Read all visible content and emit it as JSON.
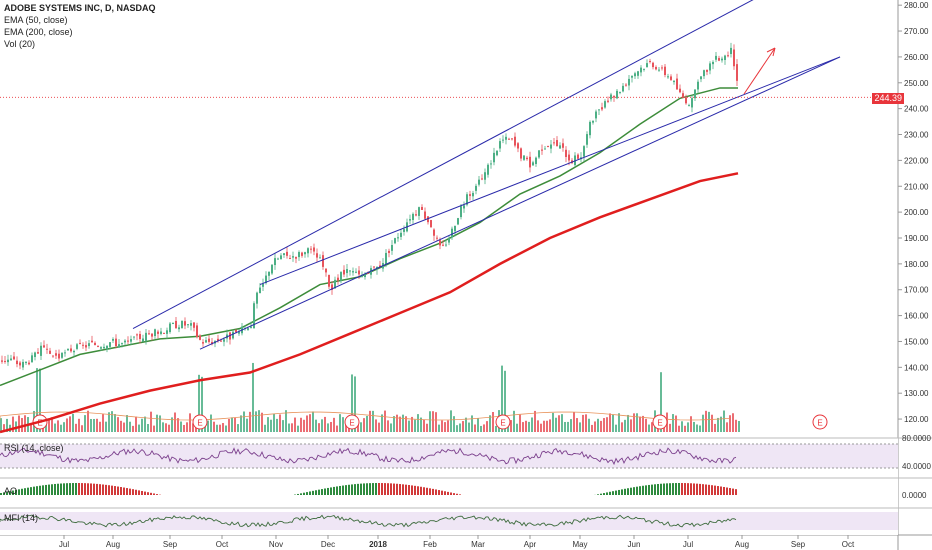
{
  "legend": {
    "title": "ADOBE SYSTEMS INC, D, NASDAQ",
    "ema50": "EMA (50, close)",
    "ema200": "EMA (200, close)",
    "vol": "Vol (20)"
  },
  "last_price": "244.39",
  "colors": {
    "up": "#4caf85",
    "down": "#e8535b",
    "ema50": "#3d8c3a",
    "ema200": "#e01e1e",
    "channel": "#2a2aaa",
    "rsi": "#7b3f8c",
    "mfi": "#3d6b3d",
    "panel_bg": "#efe6f5",
    "arrow": "#e8353b"
  },
  "panels": {
    "rsi_label": "RSI (14, close)",
    "rsi_value": "80.0000",
    "rsi_value2": "40.0000",
    "ao_label": "AO",
    "ao_value": "0.0000",
    "mfi_label": "MFI (14)"
  },
  "earnings_marker": "E",
  "chart_data": {
    "type": "candlestick",
    "title": "ADOBE SYSTEMS INC, D, NASDAQ",
    "x_tick_labels": [
      "Jul",
      "Aug",
      "Sep",
      "Oct",
      "Nov",
      "Dec",
      "2018",
      "Feb",
      "Mar",
      "Apr",
      "May",
      "Jun",
      "Jul",
      "Aug",
      "Sep",
      "Oct"
    ],
    "y_tick_labels": [
      "120.00",
      "130.00",
      "140.00",
      "150.00",
      "160.00",
      "170.00",
      "180.00",
      "190.00",
      "200.00",
      "210.00",
      "220.00",
      "230.00",
      "240.00",
      "250.00",
      "260.00",
      "270.00",
      "280.00"
    ],
    "ylim": [
      115,
      282
    ],
    "last_price": 244.39,
    "price_path": [
      [
        0,
        143
      ],
      [
        10,
        143
      ],
      [
        20,
        141
      ],
      [
        30,
        143
      ],
      [
        40,
        147
      ],
      [
        50,
        145
      ],
      [
        60,
        144
      ],
      [
        70,
        147
      ],
      [
        80,
        148
      ],
      [
        90,
        149
      ],
      [
        100,
        149
      ],
      [
        110,
        150
      ],
      [
        120,
        149
      ],
      [
        130,
        150
      ],
      [
        140,
        152
      ],
      [
        150,
        153
      ],
      [
        160,
        154
      ],
      [
        170,
        156
      ],
      [
        180,
        157
      ],
      [
        190,
        156
      ],
      [
        200,
        150
      ],
      [
        210,
        150
      ],
      [
        220,
        151
      ],
      [
        230,
        152
      ],
      [
        240,
        154
      ],
      [
        250,
        157
      ],
      [
        255,
        168
      ],
      [
        260,
        170
      ],
      [
        270,
        180
      ],
      [
        280,
        183
      ],
      [
        290,
        183
      ],
      [
        300,
        184
      ],
      [
        310,
        185
      ],
      [
        320,
        181
      ],
      [
        330,
        170
      ],
      [
        340,
        176
      ],
      [
        350,
        177
      ],
      [
        360,
        175
      ],
      [
        370,
        177
      ],
      [
        380,
        180
      ],
      [
        390,
        187
      ],
      [
        400,
        193
      ],
      [
        410,
        199
      ],
      [
        420,
        201
      ],
      [
        430,
        195
      ],
      [
        440,
        185
      ],
      [
        450,
        192
      ],
      [
        460,
        202
      ],
      [
        470,
        208
      ],
      [
        480,
        212
      ],
      [
        490,
        220
      ],
      [
        500,
        228
      ],
      [
        510,
        228
      ],
      [
        520,
        222
      ],
      [
        530,
        218
      ],
      [
        540,
        225
      ],
      [
        550,
        227
      ],
      [
        560,
        225
      ],
      [
        570,
        220
      ],
      [
        580,
        222
      ],
      [
        590,
        235
      ],
      [
        600,
        240
      ],
      [
        610,
        244
      ],
      [
        620,
        248
      ],
      [
        630,
        253
      ],
      [
        640,
        256
      ],
      [
        650,
        258
      ],
      [
        660,
        255
      ],
      [
        670,
        252
      ],
      [
        680,
        245
      ],
      [
        690,
        242
      ],
      [
        700,
        252
      ],
      [
        710,
        258
      ],
      [
        720,
        260
      ],
      [
        730,
        262
      ],
      [
        735,
        255
      ],
      [
        738,
        244.4
      ]
    ],
    "series": [
      {
        "name": "EMA (50, close)",
        "points": [
          [
            0,
            133
          ],
          [
            40,
            139
          ],
          [
            80,
            145
          ],
          [
            120,
            148
          ],
          [
            160,
            151
          ],
          [
            200,
            152
          ],
          [
            240,
            155
          ],
          [
            280,
            163
          ],
          [
            320,
            172
          ],
          [
            360,
            175
          ],
          [
            400,
            182
          ],
          [
            440,
            188
          ],
          [
            480,
            196
          ],
          [
            520,
            207
          ],
          [
            560,
            214
          ],
          [
            600,
            223
          ],
          [
            640,
            234
          ],
          [
            680,
            244
          ],
          [
            720,
            248
          ],
          [
            738,
            248
          ]
        ]
      },
      {
        "name": "EMA (200, close)",
        "points": [
          [
            0,
            115
          ],
          [
            50,
            120
          ],
          [
            100,
            126
          ],
          [
            150,
            131
          ],
          [
            200,
            135
          ],
          [
            250,
            138
          ],
          [
            300,
            145
          ],
          [
            350,
            153
          ],
          [
            400,
            161
          ],
          [
            450,
            169
          ],
          [
            500,
            180
          ],
          [
            550,
            190
          ],
          [
            600,
            198
          ],
          [
            650,
            205
          ],
          [
            700,
            212
          ],
          [
            738,
            215
          ]
        ]
      }
    ],
    "channel_lines": [
      {
        "from": [
          133,
          155
        ],
        "to": [
          772,
          286
        ]
      },
      {
        "from": [
          200,
          147
        ],
        "to": [
          840,
          260
        ]
      },
      {
        "from": [
          260,
          172
        ],
        "to": [
          840,
          260
        ]
      }
    ]
  }
}
